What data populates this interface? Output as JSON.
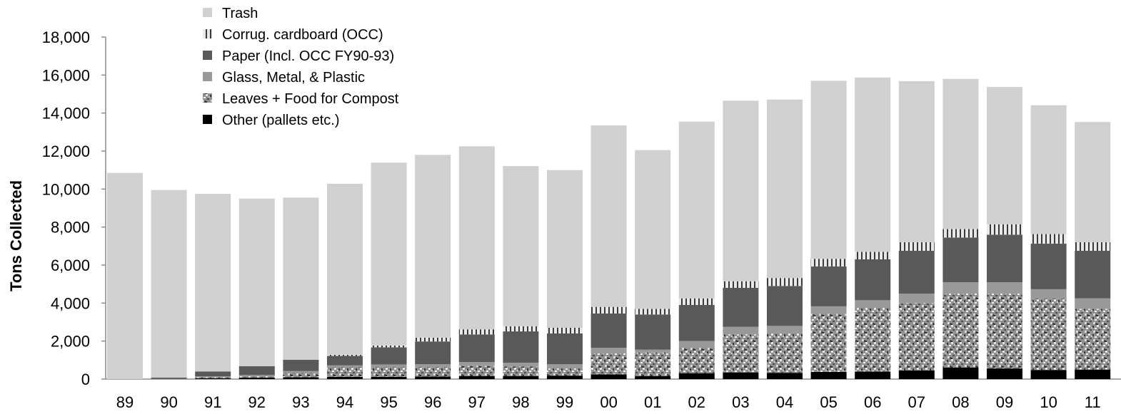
{
  "chart_data": {
    "type": "bar",
    "stacked": true,
    "title": "",
    "xlabel": "",
    "ylabel": "Tons Collected",
    "ylim": [
      0,
      18000
    ],
    "yticks": [
      0,
      2000,
      4000,
      6000,
      8000,
      10000,
      12000,
      14000,
      16000,
      18000
    ],
    "ytick_labels": [
      "0",
      "2,000",
      "4,000",
      "6,000",
      "8,000",
      "10,000",
      "12,000",
      "14,000",
      "16,000",
      "18,000"
    ],
    "grid": false,
    "legend_position": "top-left",
    "categories": [
      "89",
      "90",
      "91",
      "92",
      "93",
      "94",
      "95",
      "96",
      "97",
      "98",
      "99",
      "00",
      "01",
      "02",
      "03",
      "04",
      "05",
      "06",
      "07",
      "08",
      "09",
      "10",
      "11"
    ],
    "series": [
      {
        "name": "Other (pallets etc.)",
        "color": "#000000",
        "pattern": "solid",
        "values": [
          0,
          0,
          50,
          80,
          100,
          120,
          120,
          130,
          150,
          160,
          180,
          250,
          150,
          300,
          350,
          330,
          380,
          400,
          450,
          600,
          560,
          480,
          500
        ]
      },
      {
        "name": "Leaves + Food for Compost",
        "color": "#9a9a9a",
        "pattern": "speckle",
        "values": [
          0,
          0,
          50,
          80,
          220,
          500,
          500,
          500,
          550,
          500,
          380,
          1100,
          1250,
          1350,
          2000,
          2070,
          3050,
          3350,
          3550,
          3900,
          3940,
          3750,
          3200
        ]
      },
      {
        "name": "Glass, Metal, & Plastic",
        "color": "#999999",
        "pattern": "solid",
        "values": [
          0,
          10,
          50,
          50,
          100,
          100,
          150,
          150,
          200,
          200,
          220,
          300,
          150,
          350,
          400,
          400,
          400,
          400,
          500,
          600,
          600,
          500,
          550
        ]
      },
      {
        "name": "Paper (Incl. OCC FY90-93)",
        "color": "#595959",
        "pattern": "solid",
        "values": [
          0,
          70,
          250,
          470,
          600,
          500,
          900,
          1200,
          1450,
          1650,
          1620,
          1800,
          1850,
          1900,
          2050,
          2100,
          2100,
          2150,
          2250,
          2350,
          2500,
          2400,
          2500
        ]
      },
      {
        "name": "Corrug. cardboard (OCC)",
        "color": "#bdbdbd",
        "pattern": "stripes",
        "values": [
          0,
          0,
          0,
          0,
          0,
          60,
          100,
          200,
          270,
          270,
          300,
          350,
          300,
          350,
          350,
          420,
          400,
          400,
          450,
          450,
          550,
          500,
          450
        ]
      },
      {
        "name": "Trash",
        "color": "#d0d0d0",
        "pattern": "solid",
        "values": [
          10850,
          9870,
          9350,
          8820,
          8530,
          9000,
          9620,
          9620,
          9630,
          8430,
          8300,
          9550,
          8350,
          9300,
          9500,
          9390,
          9370,
          9170,
          8480,
          7900,
          7220,
          6780,
          6330
        ]
      }
    ],
    "legend_order": [
      "Trash",
      "Corrug. cardboard (OCC)",
      "Paper (Incl. OCC FY90-93)",
      "Glass, Metal, & Plastic",
      "Leaves + Food for Compost",
      "Other (pallets etc.)"
    ]
  }
}
